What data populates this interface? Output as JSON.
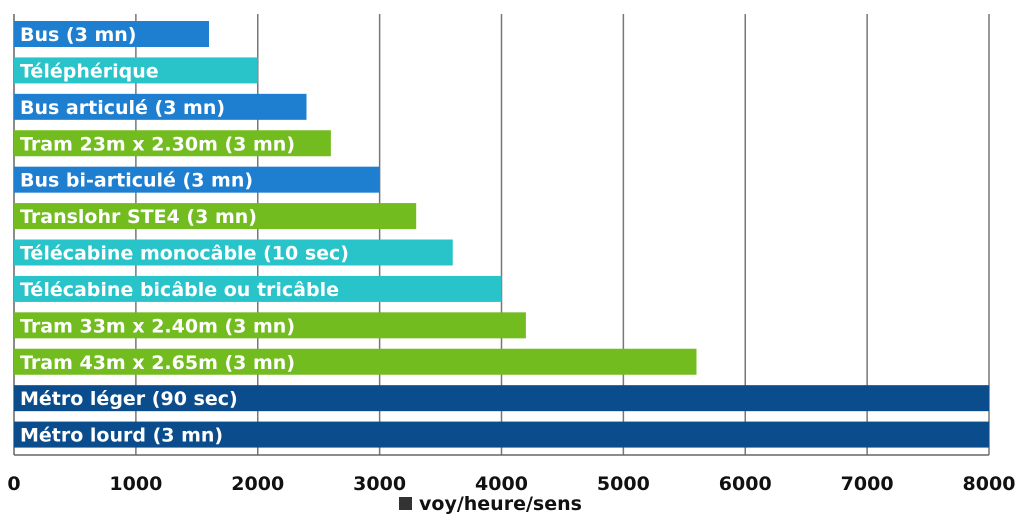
{
  "chart_data": {
    "type": "bar",
    "orientation": "horizontal",
    "xlim": [
      0,
      8000
    ],
    "grid": true,
    "legend_placement": "bottom-center",
    "ticks": [
      "0",
      "1000",
      "2000",
      "3000",
      "4000",
      "5000",
      "6000",
      "7000",
      "8000"
    ],
    "legend": {
      "label": "voy/heure/sens",
      "color": "#333333"
    },
    "bars": [
      {
        "label": "Bus (3 mn)",
        "value": 1600,
        "color": "#1e7fd0"
      },
      {
        "label": "Téléphérique",
        "value": 2000,
        "color": "#29c4c9"
      },
      {
        "label": "Bus articulé (3 mn)",
        "value": 2400,
        "color": "#1e7fd0"
      },
      {
        "label": "Tram 23m x 2.30m (3 mn)",
        "value": 2600,
        "color": "#72bc1f"
      },
      {
        "label": "Bus bi-articulé (3 mn)",
        "value": 3000,
        "color": "#1e7fd0"
      },
      {
        "label": "Translohr STE4 (3 mn)",
        "value": 3300,
        "color": "#72bc1f"
      },
      {
        "label": "Télécabine monocâble (10 sec)",
        "value": 3600,
        "color": "#29c4c9"
      },
      {
        "label": "Télécabine bicâble ou tricâble",
        "value": 4000,
        "color": "#29c4c9"
      },
      {
        "label": "Tram 33m x 2.40m (3 mn)",
        "value": 4200,
        "color": "#72bc1f"
      },
      {
        "label": "Tram 43m x 2.65m (3 mn)",
        "value": 5600,
        "color": "#72bc1f"
      },
      {
        "label": "Métro léger (90 sec)",
        "value": 8000,
        "color": "#0b4d8c"
      },
      {
        "label": "Métro lourd (3 mn)",
        "value": 8000,
        "color": "#0b4d8c"
      }
    ]
  }
}
